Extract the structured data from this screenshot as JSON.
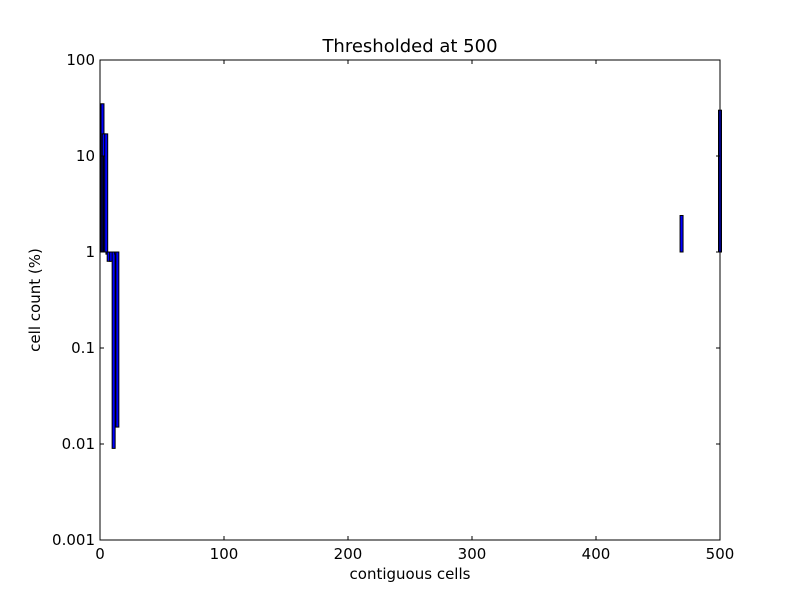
{
  "chart_data": {
    "type": "bar",
    "title": "Thresholded at 500",
    "xlabel": "contiguous cells",
    "ylabel": "cell count (%)",
    "xlim": [
      0,
      500
    ],
    "ylim": [
      0.001,
      100
    ],
    "yscale": "log",
    "baseline": 1,
    "grid": false,
    "legend": "none",
    "bar_color": "#0000ff",
    "xticks": [
      0,
      100,
      200,
      300,
      400,
      500
    ],
    "xtick_labels": [
      "0",
      "100",
      "200",
      "300",
      "400",
      "500"
    ],
    "yticks": [
      0.001,
      0.01,
      0.1,
      1,
      10,
      100
    ],
    "ytick_labels": [
      "0.001",
      "0.01",
      "0.1",
      "1",
      "10",
      "100"
    ],
    "bars": [
      {
        "x": 2,
        "y": 35
      },
      {
        "x": 3,
        "y": 17
      },
      {
        "x": 4,
        "y": 10
      },
      {
        "x": 5,
        "y": 17
      },
      {
        "x": 6,
        "y": 0.95
      },
      {
        "x": 7,
        "y": 0.8
      },
      {
        "x": 9,
        "y": 0.8
      },
      {
        "x": 11,
        "y": 0.009
      },
      {
        "x": 13,
        "y": 0.95
      },
      {
        "x": 14,
        "y": 0.015
      },
      {
        "x": 469,
        "y": 2.4
      },
      {
        "x": 500,
        "y": 30
      }
    ]
  }
}
